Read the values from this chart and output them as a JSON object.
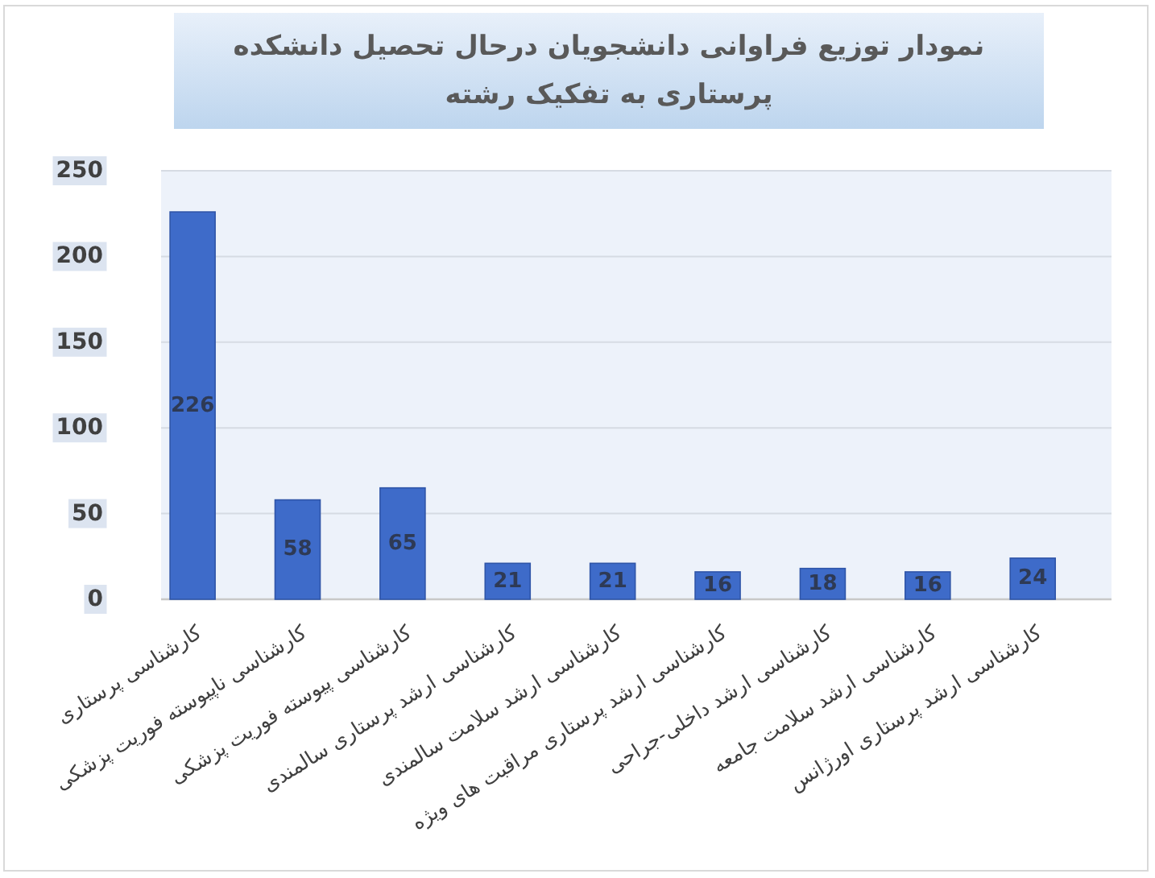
{
  "chart_data": {
    "type": "bar",
    "title": "نمودار توزیع فراوانی دانشجویان درحال تحصیل دانشکده پرستاری به تفکیک رشته",
    "categories": [
      "کارشناسی پرستاری",
      "کارشناسی ناپیوسته فوریت پزشکی",
      "کارشناسی پیوسته فوریت پزشکی",
      "کارشناسی ارشد پرستاری سالمندی",
      "کارشناسی ارشد سلامت سالمندی",
      "کارشناسی ارشد پرستاری مراقبت های ویژه",
      "کارشناسی ارشد داخلی-جراحی",
      "کارشناسی ارشد سلامت جامعه",
      "کارشناسی ارشد پرستاری اورژانس"
    ],
    "values": [
      226,
      58,
      65,
      21,
      21,
      16,
      18,
      16,
      24
    ],
    "color": "#3e6bc9",
    "ylim": [
      0,
      250
    ],
    "yticks": [
      0,
      50,
      100,
      150,
      200,
      250
    ],
    "grid": "y",
    "data_labels": true
  }
}
